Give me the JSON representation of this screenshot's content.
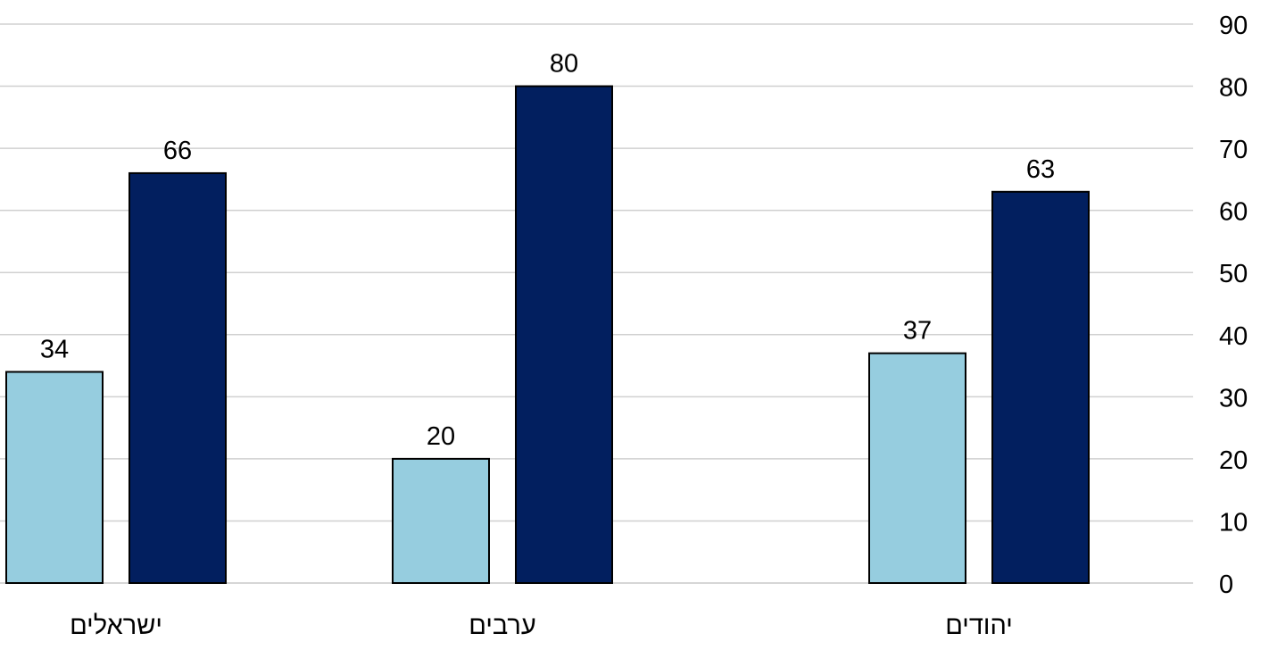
{
  "chart_data": {
    "type": "bar",
    "categories": [
      "ישראלים",
      "ערבים",
      "יהודים"
    ],
    "series": [
      {
        "color": "#96CDDF",
        "values": [
          34,
          20,
          37
        ]
      },
      {
        "color": "#021F5F",
        "values": [
          66,
          80,
          63
        ]
      }
    ],
    "ylim": [
      0,
      90
    ],
    "yticks": [
      0,
      10,
      20,
      30,
      40,
      50,
      60,
      70,
      80,
      90
    ],
    "y_axis_position": "right",
    "grid": true,
    "legend": "none"
  }
}
